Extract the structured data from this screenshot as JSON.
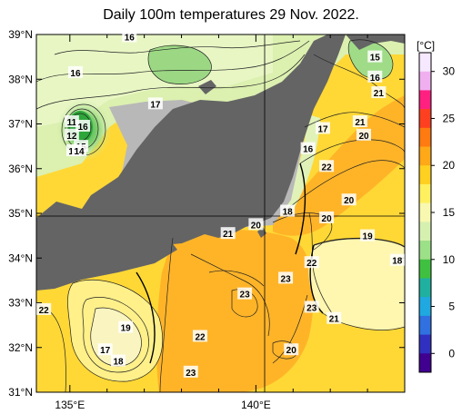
{
  "title": "Daily 100m temperatures 29 Nov. 2022.",
  "axes": {
    "lat_labels": [
      "39°N",
      "38°N",
      "37°N",
      "36°N",
      "35°N",
      "34°N",
      "33°N",
      "32°N",
      "31°N"
    ],
    "lon_labels": [
      "135°E",
      "140°E"
    ]
  },
  "colorbar": {
    "unit": "[°C]",
    "ticks": [
      "30",
      "25",
      "20",
      "15",
      "10",
      "5",
      "0"
    ],
    "colors": [
      "#f6e8ff",
      "#f0b0f0",
      "#ff2080",
      "#ff4020",
      "#ff7a10",
      "#ffa818",
      "#ffd020",
      "#fff060",
      "#f8f8b0",
      "#d6f0b0",
      "#9ce088",
      "#40c040",
      "#20b0a0",
      "#20a8e0",
      "#3070e0",
      "#3030c0",
      "#400090"
    ]
  },
  "contour_labels": [
    {
      "text": "16",
      "lon": 136.6,
      "lat": 38.95
    },
    {
      "text": "16",
      "lon": 135.15,
      "lat": 38.15
    },
    {
      "text": "17",
      "lon": 137.3,
      "lat": 37.45
    },
    {
      "text": "11",
      "lon": 135.05,
      "lat": 37.05
    },
    {
      "text": "12",
      "lon": 135.05,
      "lat": 36.75
    },
    {
      "text": "16",
      "lon": 135.35,
      "lat": 36.95
    },
    {
      "text": "15",
      "lon": 135.3,
      "lat": 36.5
    },
    {
      "text": "13",
      "lon": 135.1,
      "lat": 36.4
    },
    {
      "text": "14",
      "lon": 135.25,
      "lat": 36.4
    },
    {
      "text": "15",
      "lon": 143.2,
      "lat": 38.5
    },
    {
      "text": "16",
      "lon": 143.2,
      "lat": 38.05
    },
    {
      "text": "21",
      "lon": 143.3,
      "lat": 37.7
    },
    {
      "text": "21",
      "lon": 142.8,
      "lat": 37.05
    },
    {
      "text": "20",
      "lon": 142.9,
      "lat": 36.75
    },
    {
      "text": "17",
      "lon": 141.8,
      "lat": 36.9
    },
    {
      "text": "16",
      "lon": 141.4,
      "lat": 36.45
    },
    {
      "text": "22",
      "lon": 141.9,
      "lat": 36.05
    },
    {
      "text": "20",
      "lon": 142.5,
      "lat": 35.3
    },
    {
      "text": "18",
      "lon": 140.85,
      "lat": 35.05
    },
    {
      "text": "20",
      "lon": 141.9,
      "lat": 34.9
    },
    {
      "text": "19",
      "lon": 143.0,
      "lat": 34.5
    },
    {
      "text": "18",
      "lon": 143.8,
      "lat": 33.95
    },
    {
      "text": "21",
      "lon": 139.25,
      "lat": 34.55
    },
    {
      "text": "20",
      "lon": 140.0,
      "lat": 34.75
    },
    {
      "text": "22",
      "lon": 141.5,
      "lat": 33.9
    },
    {
      "text": "23",
      "lon": 140.8,
      "lat": 33.55
    },
    {
      "text": "23",
      "lon": 139.7,
      "lat": 33.2
    },
    {
      "text": "23",
      "lon": 141.5,
      "lat": 32.9
    },
    {
      "text": "21",
      "lon": 142.1,
      "lat": 32.65
    },
    {
      "text": "22",
      "lon": 134.3,
      "lat": 32.85
    },
    {
      "text": "19",
      "lon": 136.5,
      "lat": 32.45
    },
    {
      "text": "17",
      "lon": 135.95,
      "lat": 31.95
    },
    {
      "text": "18",
      "lon": 136.3,
      "lat": 31.7
    },
    {
      "text": "22",
      "lon": 138.5,
      "lat": 32.25
    },
    {
      "text": "20",
      "lon": 140.95,
      "lat": 31.95
    },
    {
      "text": "23",
      "lon": 138.25,
      "lat": 31.45
    }
  ]
}
